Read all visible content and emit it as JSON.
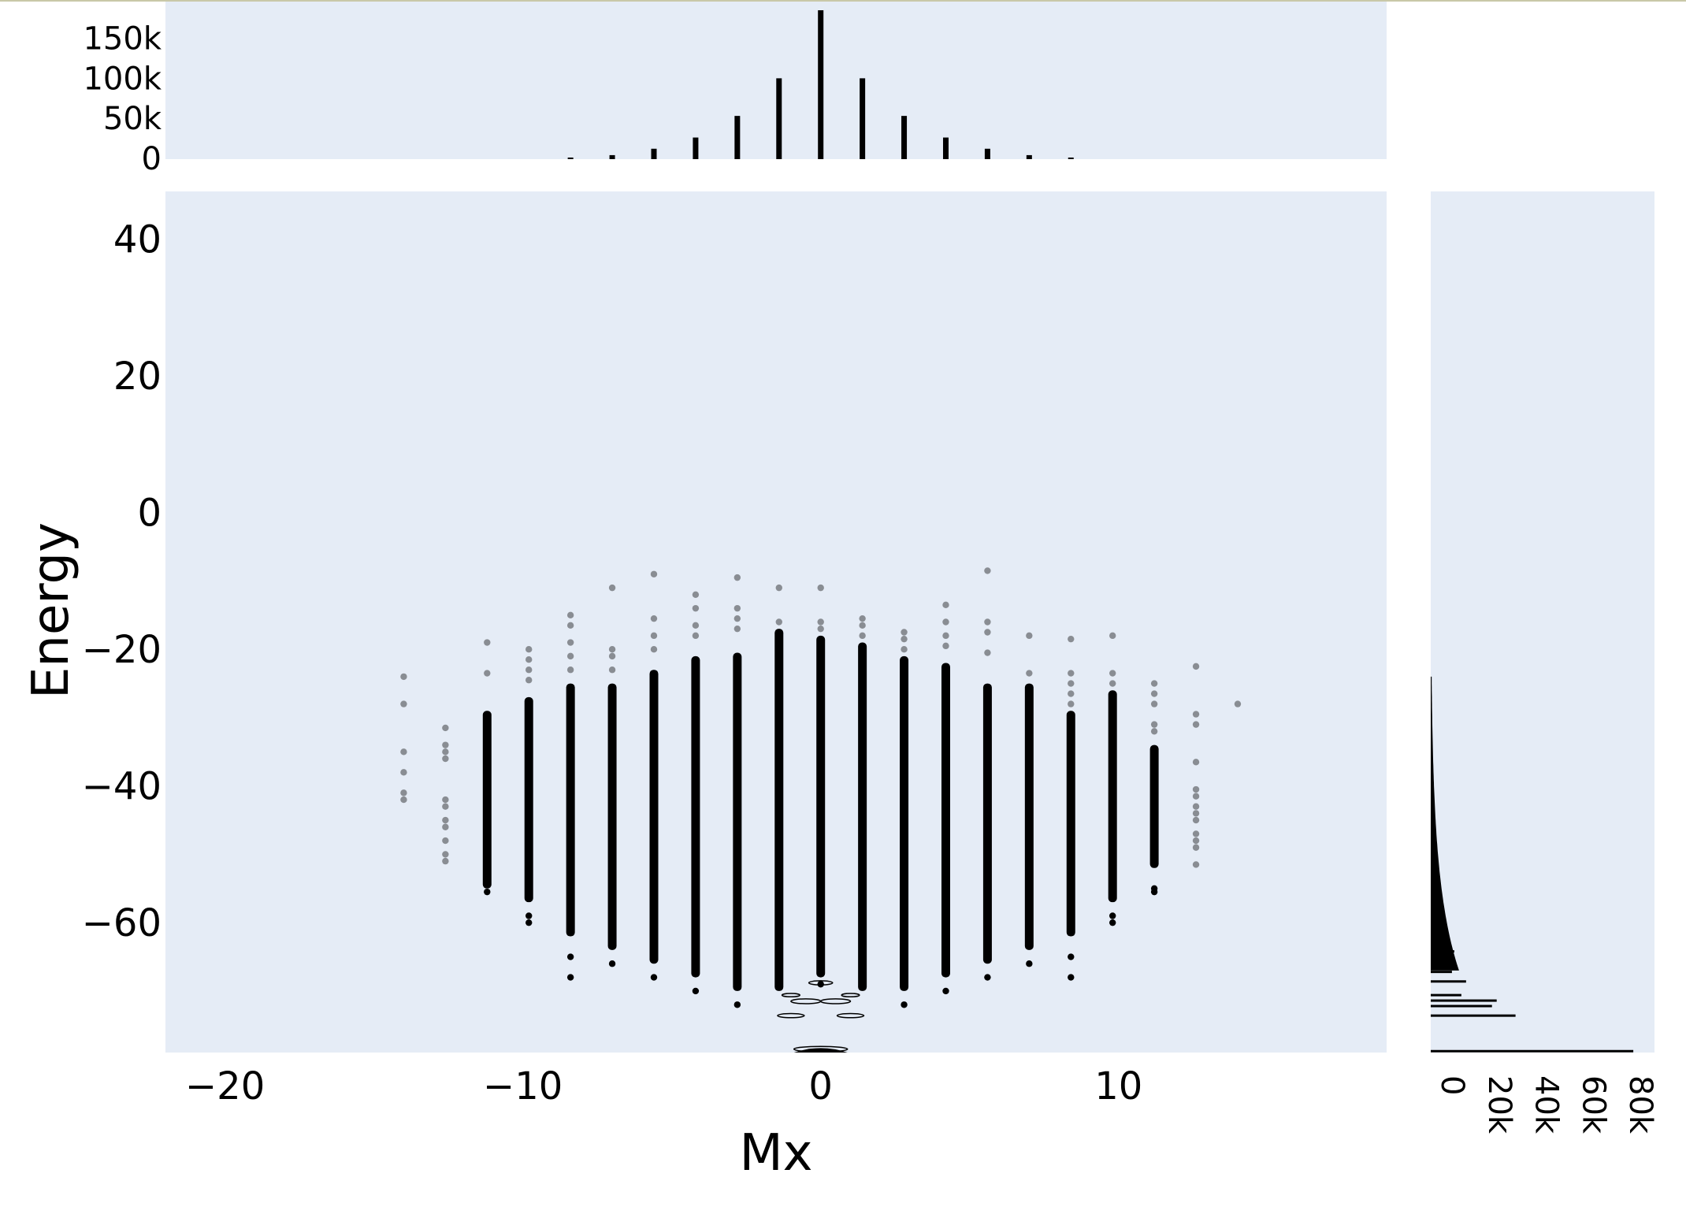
{
  "chart_data": {
    "type": "scatter",
    "xlabel": "Mx",
    "ylabel": "Energy",
    "xlim": [
      -22,
      19
    ],
    "ylim": [
      -79,
      47
    ],
    "x_ticks": [
      -20,
      -10,
      0,
      10
    ],
    "x_tick_labels": [
      "−20",
      "−10",
      "0",
      "10"
    ],
    "y_ticks": [
      40,
      20,
      0,
      -20,
      -40,
      -60
    ],
    "y_tick_labels": [
      "40",
      "20",
      "0",
      "−20",
      "−40",
      "−60"
    ],
    "background": "#e5ecf6",
    "marker_color": "#000000",
    "columns": [
      {
        "x": -14,
        "top": -24,
        "dense": [],
        "pts": [
          -24,
          -28,
          -35,
          -38,
          -41,
          -42
        ]
      },
      {
        "x": -12.6,
        "top": -31.5,
        "dense": [],
        "pts": [
          -31.5,
          -34,
          -35,
          -36,
          -42,
          -43,
          -45,
          -46,
          -48,
          -50,
          -51
        ]
      },
      {
        "x": -11.2,
        "top": -19,
        "dense": [
          -29,
          -55
        ],
        "pts": [
          -19,
          -23.5,
          -55.5
        ]
      },
      {
        "x": -9.8,
        "top": -20,
        "dense": [
          -27,
          -57
        ],
        "pts": [
          -20,
          -21.5,
          -23,
          -24.5,
          -59,
          -60
        ]
      },
      {
        "x": -8.4,
        "top": -15,
        "dense": [
          -25,
          -62
        ],
        "pts": [
          -15,
          -16.5,
          -19,
          -21,
          -23,
          -65,
          -68
        ]
      },
      {
        "x": -7,
        "top": -11,
        "dense": [
          -25,
          -64
        ],
        "pts": [
          -11,
          -20,
          -21,
          -23,
          -66
        ]
      },
      {
        "x": -5.6,
        "top": -9,
        "dense": [
          -23,
          -66
        ],
        "pts": [
          -9,
          -15.5,
          -18,
          -20,
          -68
        ]
      },
      {
        "x": -4.2,
        "top": -12,
        "dense": [
          -21,
          -68
        ],
        "pts": [
          -12,
          -14,
          -16.5,
          -18,
          -70
        ]
      },
      {
        "x": -2.8,
        "top": -9.5,
        "dense": [
          -20.5,
          -70
        ],
        "pts": [
          -9.5,
          -14,
          -15.5,
          -17,
          -72
        ]
      },
      {
        "x": -1.4,
        "top": -11,
        "dense": [
          -17,
          -70
        ],
        "pts": [
          -11,
          -16
        ]
      },
      {
        "x": 0,
        "top": -11,
        "dense": [
          -18,
          -68
        ],
        "pts": [
          -11,
          -16,
          -17,
          -69
        ]
      },
      {
        "x": 1.4,
        "top": -15.5,
        "dense": [
          -19,
          -70
        ],
        "pts": [
          -15.5,
          -16.5,
          -18
        ]
      },
      {
        "x": 2.8,
        "top": -17.5,
        "dense": [
          -21,
          -70
        ],
        "pts": [
          -17.5,
          -18.5,
          -20,
          -72
        ]
      },
      {
        "x": 4.2,
        "top": -13.5,
        "dense": [
          -22,
          -68
        ],
        "pts": [
          -13.5,
          -16,
          -18,
          -19.5,
          -70
        ]
      },
      {
        "x": 5.6,
        "top": -8.5,
        "dense": [
          -25,
          -66
        ],
        "pts": [
          -8.5,
          -16,
          -17.5,
          -20.5,
          -68
        ]
      },
      {
        "x": 7,
        "top": -18,
        "dense": [
          -25,
          -64
        ],
        "pts": [
          -18,
          -23.5,
          -66
        ]
      },
      {
        "x": 8.4,
        "top": -18.5,
        "dense": [
          -29,
          -62
        ],
        "pts": [
          -18.5,
          -23.5,
          -25,
          -26.5,
          -28,
          -65,
          -68
        ]
      },
      {
        "x": 9.8,
        "top": -18,
        "dense": [
          -26,
          -57
        ],
        "pts": [
          -18,
          -23.5,
          -25,
          -59,
          -60
        ]
      },
      {
        "x": 11.2,
        "top": -25,
        "dense": [
          -34,
          -52
        ],
        "pts": [
          -25,
          -26.5,
          -28,
          -31,
          -32,
          -55,
          -55.5
        ]
      },
      {
        "x": 12.6,
        "top": -22.5,
        "dense": [],
        "pts": [
          -22.5,
          -29.5,
          -31,
          -36.5,
          -40.5,
          -41.5,
          -43,
          -44,
          -45,
          -47,
          -48,
          -49,
          -51.5
        ]
      },
      {
        "x": 14,
        "top": -28,
        "dense": [],
        "pts": [
          -28
        ]
      }
    ],
    "contours": [
      {
        "cx": -0.5,
        "cy": -71.5,
        "rx": 0.5,
        "ry": 0.35
      },
      {
        "cx": 0.5,
        "cy": -71.5,
        "rx": 0.5,
        "ry": 0.35
      },
      {
        "cx": 0,
        "cy": -68.8,
        "rx": 0.4,
        "ry": 0.3
      },
      {
        "cx": -1,
        "cy": -70.6,
        "rx": 0.3,
        "ry": 0.25
      },
      {
        "cx": 1,
        "cy": -70.6,
        "rx": 0.3,
        "ry": 0.25
      },
      {
        "cx": -1,
        "cy": -73.6,
        "rx": 0.45,
        "ry": 0.3
      },
      {
        "cx": 1,
        "cy": -73.6,
        "rx": 0.45,
        "ry": 0.3
      },
      {
        "cx": 0,
        "cy": -78.5,
        "rx": 0.9,
        "ry": 0.4
      }
    ],
    "top_histogram": {
      "type": "bar",
      "ylim": [
        0,
        187000
      ],
      "y_ticks": [
        0,
        50000,
        100000,
        150000
      ],
      "y_tick_labels": [
        "0",
        "50k",
        "100k",
        "150k"
      ],
      "x": [
        -8.4,
        -7,
        -5.6,
        -4.2,
        -2.8,
        -1.4,
        0,
        1.4,
        2.8,
        4.2,
        5.6,
        7,
        8.4
      ],
      "counts": [
        2000,
        5000,
        13000,
        27000,
        54000,
        101000,
        186000,
        101000,
        54000,
        27000,
        13000,
        5000,
        2000
      ]
    },
    "right_histogram": {
      "type": "bar",
      "orientation": "horizontal",
      "xlim": [
        0,
        95000
      ],
      "x_ticks": [
        0,
        20000,
        40000,
        60000,
        80000
      ],
      "x_tick_labels": [
        "0",
        "20k",
        "40k",
        "60k",
        "80k"
      ],
      "spikes": [
        {
          "y": -78.8,
          "count": 86000
        },
        {
          "y": -73.6,
          "count": 36000
        },
        {
          "y": -72.2,
          "count": 26000
        },
        {
          "y": -71.4,
          "count": 28000
        },
        {
          "y": -70.6,
          "count": 13000
        },
        {
          "y": -68.6,
          "count": 15000
        },
        {
          "y": -67.2,
          "count": 9000
        },
        {
          "y": -64.2,
          "count": 10000
        },
        {
          "y": -62.2,
          "count": 6000
        }
      ]
    }
  }
}
